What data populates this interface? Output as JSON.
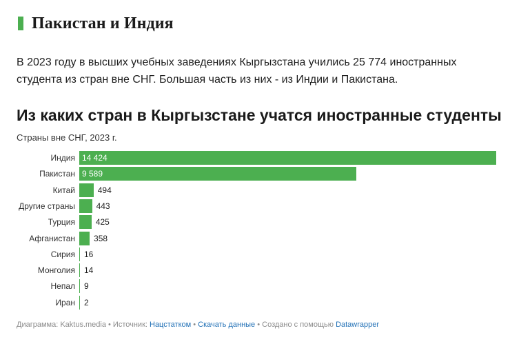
{
  "section": {
    "title": "Пакистан и Индия"
  },
  "lead": {
    "text": "В 2023 году в высших учебных заведениях Кыргызстана учились 25 774 иностранных студента из стран вне СНГ. Большая часть из них - из Индии и Пакистана."
  },
  "chart_data": {
    "type": "bar",
    "orientation": "horizontal",
    "title": "Из каких стран в Кыргызстане учатся иностранные студенты",
    "subtitle": "Страны вне СНГ, 2023 г.",
    "categories": [
      "Индия",
      "Пакистан",
      "Китай",
      "Другие страны",
      "Турция",
      "Афганистан",
      "Сирия",
      "Монголия",
      "Непал",
      "Иран"
    ],
    "values": [
      14424,
      9589,
      494,
      443,
      425,
      358,
      16,
      14,
      9,
      2
    ],
    "value_labels": [
      "14 424",
      "9 589",
      "494",
      "443",
      "425",
      "358",
      "16",
      "14",
      "9",
      "2"
    ],
    "color": "#4caf50",
    "xlim": [
      0,
      14424
    ]
  },
  "footer": {
    "prefix": "Диаграмма: Kaktus.media • Источник: ",
    "source_link": "Нацстатком",
    "sep1": " • ",
    "download_link": "Скачать данные",
    "created": " • Создано с помощью ",
    "tool_link": "Datawrapper"
  }
}
